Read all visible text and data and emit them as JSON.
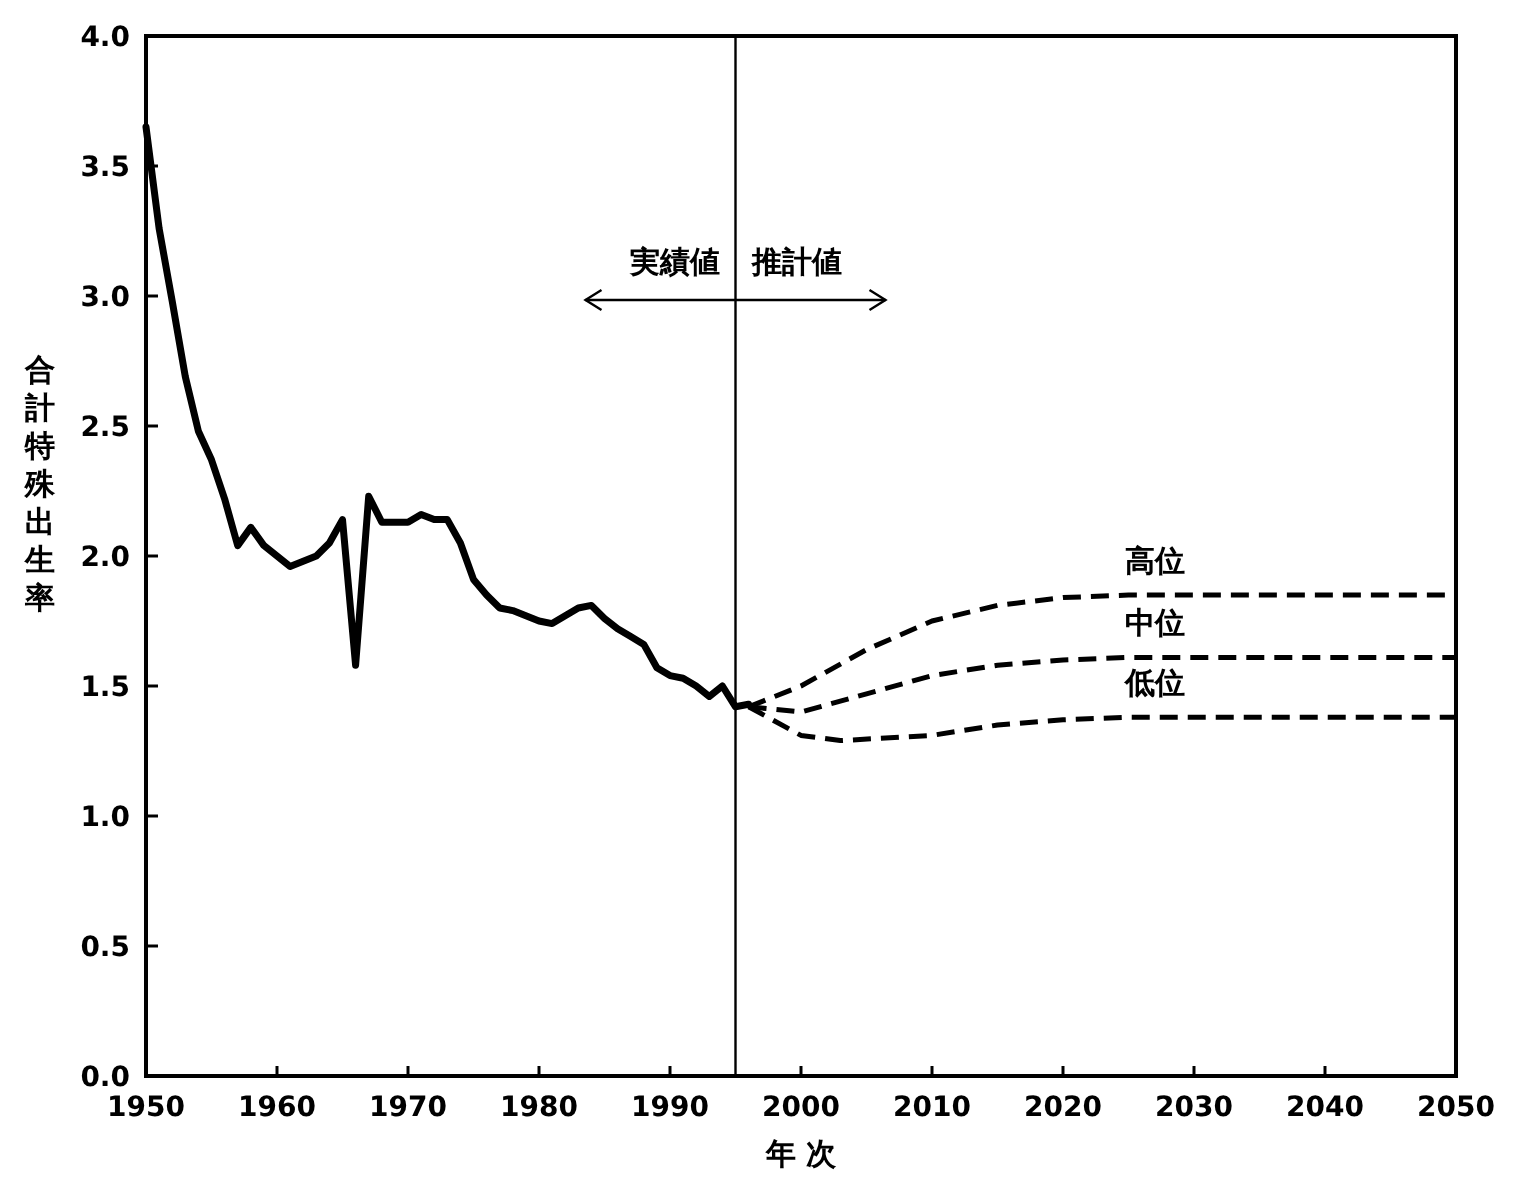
{
  "chart_data": {
    "type": "line",
    "xlabel": "年 次",
    "ylabel": "合計特殊出生率",
    "xlim": [
      1950,
      2050
    ],
    "ylim": [
      0,
      4
    ],
    "xticks": [
      1950,
      1960,
      1970,
      1980,
      1990,
      2000,
      2010,
      2020,
      2030,
      2040,
      2050
    ],
    "yticks": [
      {
        "value": 0,
        "label": "0.0"
      },
      0.5,
      {
        "value": 1,
        "label": "1.0"
      },
      1.5,
      {
        "value": 2,
        "label": "2.0"
      },
      2.5,
      {
        "value": 3,
        "label": "3.0"
      },
      3.5,
      {
        "value": 4,
        "label": "4.0"
      }
    ],
    "grid": false,
    "ref_lines": [
      {
        "axis": "x",
        "value": 1995,
        "color": "#000000"
      }
    ],
    "annotations": [
      "実績値",
      "推計値"
    ],
    "series": [
      {
        "color": "#000000",
        "line_style": "solid",
        "x": [
          1950,
          1951,
          1952,
          1953,
          1954,
          1955,
          1956,
          1957,
          1958,
          1959,
          1960,
          1961,
          1962,
          1963,
          1964,
          1965,
          1966,
          1967,
          1968,
          1969,
          1970,
          1971,
          1972,
          1973,
          1974,
          1975,
          1976,
          1977,
          1978,
          1979,
          1980,
          1981,
          1982,
          1983,
          1984,
          1985,
          1986,
          1987,
          1988,
          1989,
          1990,
          1991,
          1992,
          1993,
          1994,
          1995,
          1996
        ],
        "values": [
          3.65,
          3.26,
          2.98,
          2.69,
          2.48,
          2.37,
          2.22,
          2.04,
          2.11,
          2.04,
          2.0,
          1.96,
          1.98,
          2.0,
          2.05,
          2.14,
          1.58,
          2.23,
          2.13,
          2.13,
          2.13,
          2.16,
          2.14,
          2.14,
          2.05,
          1.91,
          1.85,
          1.8,
          1.79,
          1.77,
          1.75,
          1.74,
          1.77,
          1.8,
          1.81,
          1.76,
          1.72,
          1.69,
          1.66,
          1.57,
          1.54,
          1.53,
          1.5,
          1.46,
          1.5,
          1.42,
          1.43
        ]
      },
      {
        "name": "高位",
        "color": "#000000",
        "line_style": "dashed",
        "x": [
          1996,
          2000,
          2005,
          2010,
          2015,
          2020,
          2025,
          2050
        ],
        "values": [
          1.42,
          1.5,
          1.64,
          1.75,
          1.81,
          1.84,
          1.85,
          1.85
        ]
      },
      {
        "name": "中位",
        "color": "#000000",
        "line_style": "dashed",
        "x": [
          1996,
          2000,
          2005,
          2010,
          2015,
          2020,
          2025,
          2050
        ],
        "values": [
          1.42,
          1.4,
          1.47,
          1.54,
          1.58,
          1.6,
          1.61,
          1.61
        ]
      },
      {
        "name": "低位",
        "color": "#000000",
        "line_style": "dashed",
        "x": [
          1996,
          2000,
          2003,
          2010,
          2015,
          2020,
          2025,
          2050
        ],
        "values": [
          1.42,
          1.31,
          1.29,
          1.31,
          1.35,
          1.37,
          1.38,
          1.38
        ]
      }
    ]
  }
}
